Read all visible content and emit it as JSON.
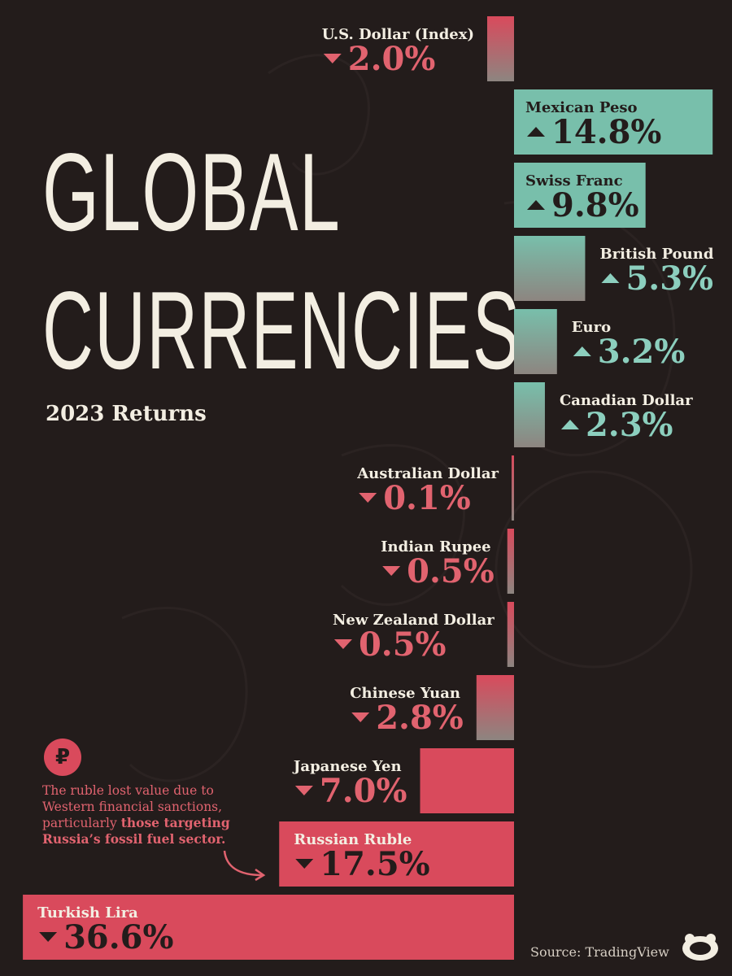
{
  "title_line1": "GLOBAL",
  "title_line2": "CURRENCIES:",
  "subtitle": "2023 Returns",
  "note": {
    "icon": "ruble-icon",
    "icon_glyph": "₽",
    "text_plain": "The ruble lost value due to Western financial sanctions, particularly",
    "text_bold": "those targeting Russia’s fossil fuel sector."
  },
  "source": "Source: TradingView",
  "colors": {
    "background": "#231c1b",
    "positive_bar": "#78bfab",
    "negative_bar": "#d94a5c",
    "positive_text": "#8ccfbe",
    "negative_text": "#e1636f",
    "label_text": "#f3eee2",
    "inbar_text": "#231c1b"
  },
  "chart_data": {
    "type": "bar",
    "orientation": "horizontal",
    "title": "GLOBAL CURRENCIES:",
    "subtitle": "2023 Returns",
    "xlabel": "",
    "ylabel": "",
    "unit": "%",
    "categories": [
      "U.S. Dollar (Index)",
      "Mexican Peso",
      "Swiss Franc",
      "British Pound",
      "Euro",
      "Canadian Dollar",
      "Australian Dollar",
      "Indian Rupee",
      "New Zealand Dollar",
      "Chinese Yuan",
      "Japanese Yen",
      "Russian Ruble",
      "Turkish Lira"
    ],
    "values": [
      -2.0,
      14.8,
      9.8,
      5.3,
      3.2,
      2.3,
      -0.1,
      -0.5,
      -0.5,
      -2.8,
      -7.0,
      -17.5,
      -36.6
    ],
    "value_labels": [
      "2.0%",
      "14.8%",
      "9.8%",
      "5.3%",
      "3.2%",
      "2.3%",
      "0.1%",
      "0.5%",
      "0.5%",
      "2.8%",
      "7.0%",
      "17.5%",
      "36.6%"
    ]
  }
}
